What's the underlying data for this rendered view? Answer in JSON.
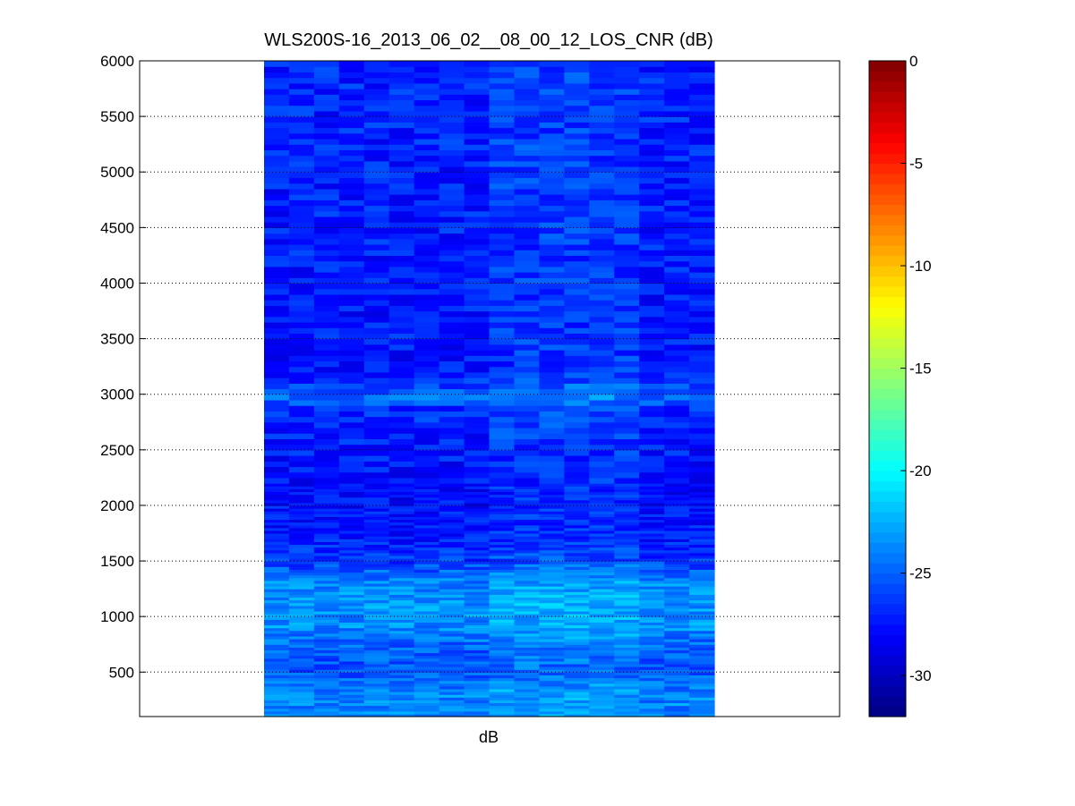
{
  "chart_data": {
    "type": "heatmap",
    "title": "WLS200S-16_2013_06_02__08_00_12_LOS_CNR (dB)",
    "xlabel": "dB",
    "ylabel": "",
    "ylim": [
      100,
      6000
    ],
    "y_ticks": [
      "500",
      "1000",
      "1500",
      "2000",
      "2500",
      "3000",
      "3500",
      "4000",
      "4500",
      "5000",
      "5500",
      "6000"
    ],
    "colorbar": {
      "colormap": "jet",
      "range": [
        -32,
        0
      ],
      "ticks": [
        "0",
        "-5",
        "-10",
        "-15",
        "-20",
        "-25",
        "-30"
      ]
    },
    "grid": "y-dotted",
    "summary_profile": {
      "altitude": [
        150,
        300,
        500,
        700,
        900,
        1100,
        1300,
        1500,
        1700,
        1900,
        2100,
        2500,
        2900,
        2960,
        3200,
        3600,
        4000,
        4500,
        5000,
        5500,
        6000
      ],
      "cnr_db": [
        -24.0,
        -23.8,
        -25.5,
        -25.2,
        -23.6,
        -23.3,
        -23.8,
        -26.2,
        -27.3,
        -27.5,
        -27.8,
        -27.3,
        -26.6,
        -24.5,
        -27.4,
        -27.3,
        -27.3,
        -27.2,
        -27.1,
        -27.0,
        -27.0
      ]
    }
  }
}
